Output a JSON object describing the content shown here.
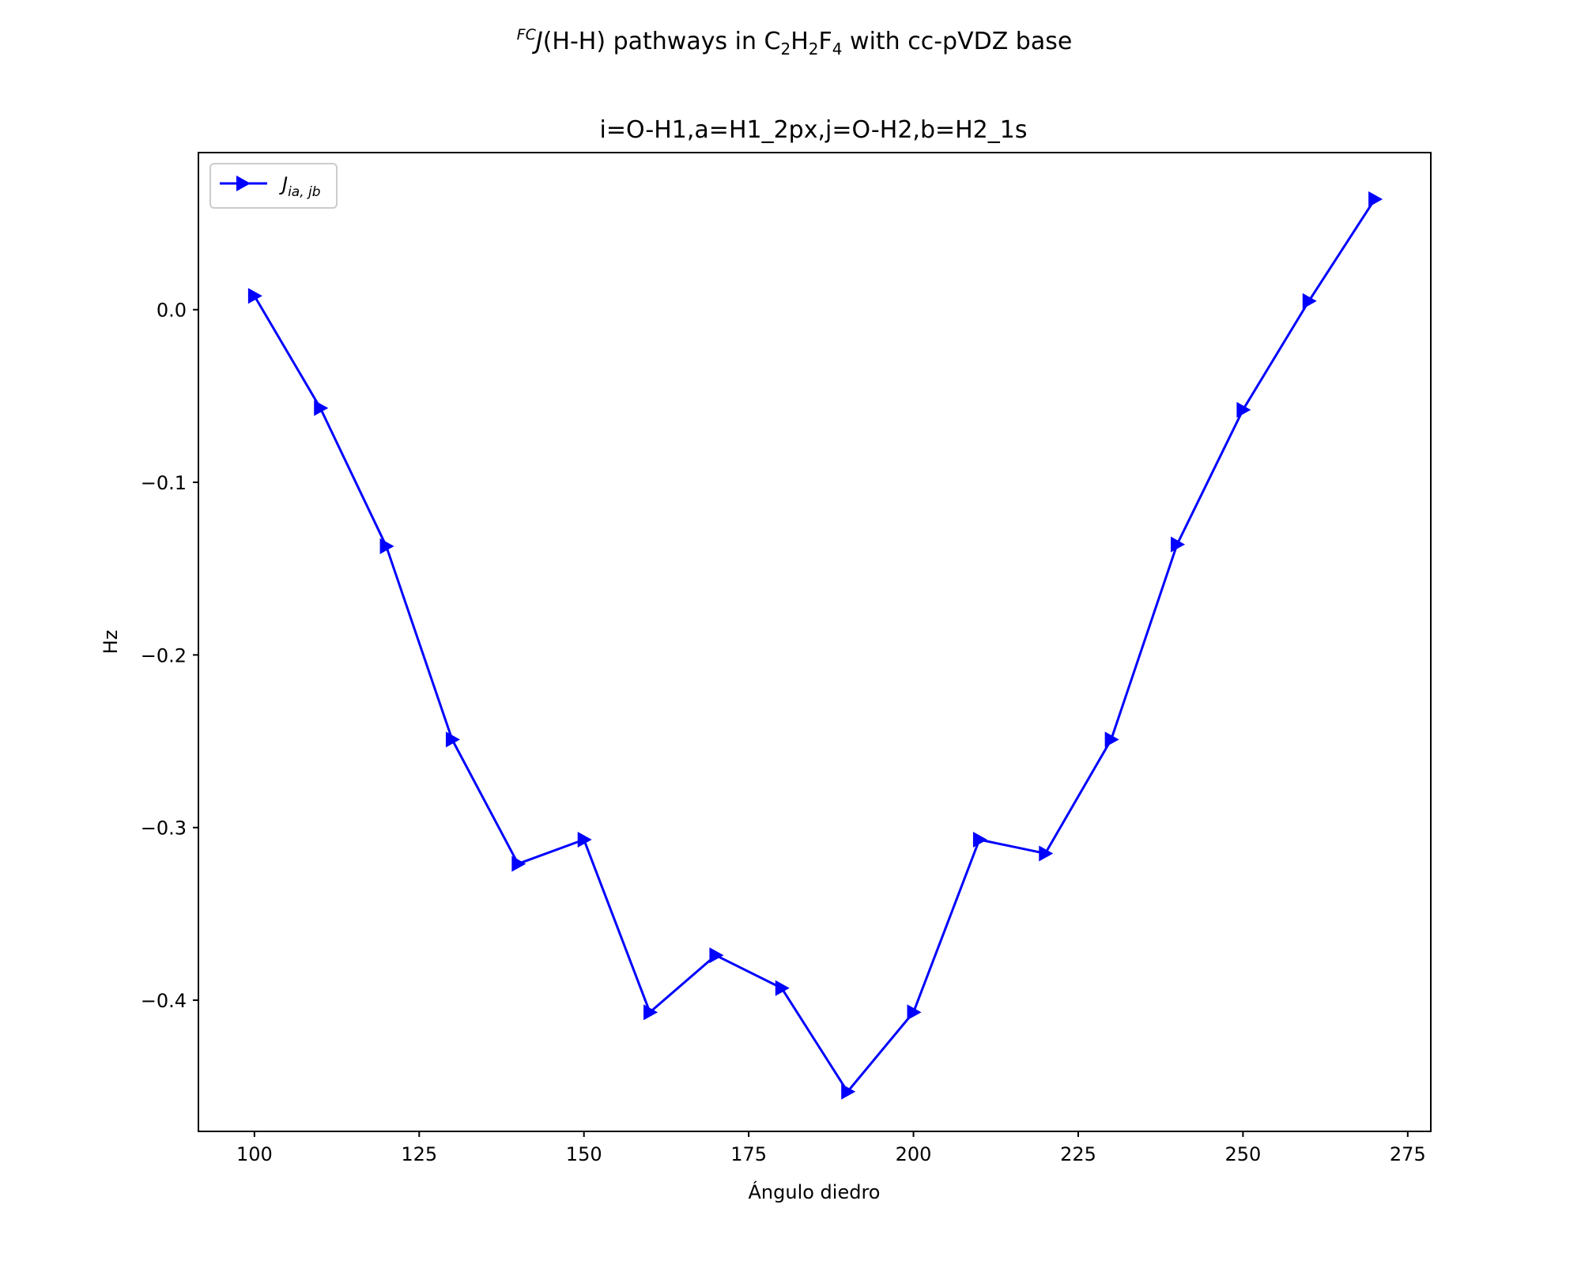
{
  "figure": {
    "suptitle_prefix": "FC",
    "suptitle_j": "J",
    "suptitle_hh": "(H-H) pathways in C",
    "suptitle_sub1": "2",
    "suptitle_h": "H",
    "suptitle_sub2": "2",
    "suptitle_f": "F",
    "suptitle_sub3": "4",
    "suptitle_rest": " with cc-pVDZ base"
  },
  "chart_data": {
    "type": "line",
    "title": "i=O-H1,a=H1_2px,j=O-H2,b=H2_1s",
    "xlabel": "Ángulo diedro",
    "ylabel": "Hz",
    "xlim": [
      91.5,
      278.5
    ],
    "ylim": [
      -0.476,
      0.091
    ],
    "x_ticks": [
      100,
      125,
      150,
      175,
      200,
      225,
      250,
      275
    ],
    "x_tick_labels": [
      "100",
      "125",
      "150",
      "175",
      "200",
      "225",
      "250",
      "275"
    ],
    "y_ticks": [
      0.0,
      -0.1,
      -0.2,
      -0.3,
      -0.4
    ],
    "y_tick_labels": [
      "0.0",
      "−0.1",
      "−0.2",
      "−0.3",
      "−0.4"
    ],
    "grid": false,
    "legend_position": "top-left",
    "series": [
      {
        "name": "J",
        "name_sub": "ia, jb",
        "color": "#0000ff",
        "marker": "triangle-right",
        "x": [
          100,
          110,
          120,
          130,
          140,
          150,
          160,
          170,
          180,
          190,
          200,
          210,
          220,
          230,
          240,
          250,
          260,
          270
        ],
        "values": [
          0.008,
          -0.057,
          -0.137,
          -0.249,
          -0.321,
          -0.307,
          -0.407,
          -0.374,
          -0.393,
          -0.453,
          -0.407,
          -0.307,
          -0.315,
          -0.249,
          -0.136,
          -0.058,
          0.005,
          0.064
        ]
      }
    ]
  }
}
